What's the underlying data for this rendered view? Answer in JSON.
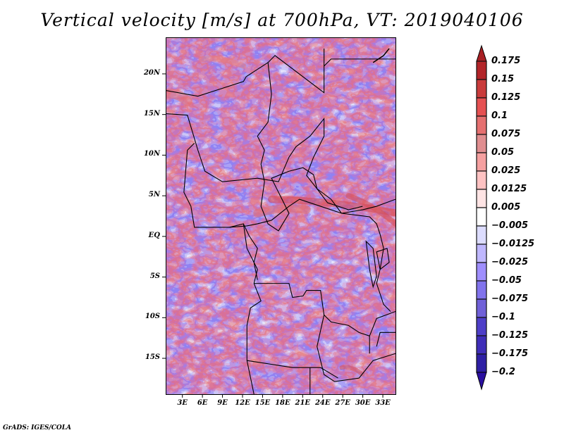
{
  "title": "Vertical velocity [m/s] at 700hPa, VT: 2019040106",
  "credit": "GrADS: IGES/COLA",
  "map": {
    "variable": "Vertical velocity",
    "units": "m/s",
    "level": "700hPa",
    "valid_time": "2019040106",
    "region": "Central Africa",
    "lat_ticks": [
      "20N",
      "15N",
      "10N",
      "5N",
      "EQ",
      "5S",
      "10S",
      "15S"
    ],
    "lat_values": [
      20,
      15,
      10,
      5,
      0,
      -5,
      -10,
      -15
    ],
    "lon_ticks": [
      "3E",
      "6E",
      "9E",
      "12E",
      "15E",
      "18E",
      "21E",
      "24E",
      "27E",
      "30E",
      "33E"
    ],
    "lon_values": [
      3,
      6,
      9,
      12,
      15,
      18,
      21,
      24,
      27,
      30,
      33
    ],
    "lat_range": [
      -19.5,
      24.5
    ],
    "lon_range": [
      0.5,
      35
    ]
  },
  "colorbar": {
    "labels": [
      "0.175",
      "0.15",
      "0.125",
      "0.1",
      "0.075",
      "0.05",
      "0.025",
      "0.0125",
      "0.005",
      "−0.005",
      "−0.0125",
      "−0.025",
      "−0.05",
      "−0.075",
      "−0.1",
      "−0.125",
      "−0.175",
      "−0.2"
    ],
    "colors": [
      "#b22428",
      "#c93b3b",
      "#e55152",
      "#e57070",
      "#e08e90",
      "#f5a0a0",
      "#fec2c2",
      "#fee4e4",
      "#ffffff",
      "#dcdcfe",
      "#bfb7fe",
      "#9f8efe",
      "#8173ec",
      "#7060d8",
      "#4e3ec8",
      "#3f2db8",
      "#2e1fa4"
    ],
    "over_color": "#a82024",
    "under_color": "#2a0fa0"
  }
}
